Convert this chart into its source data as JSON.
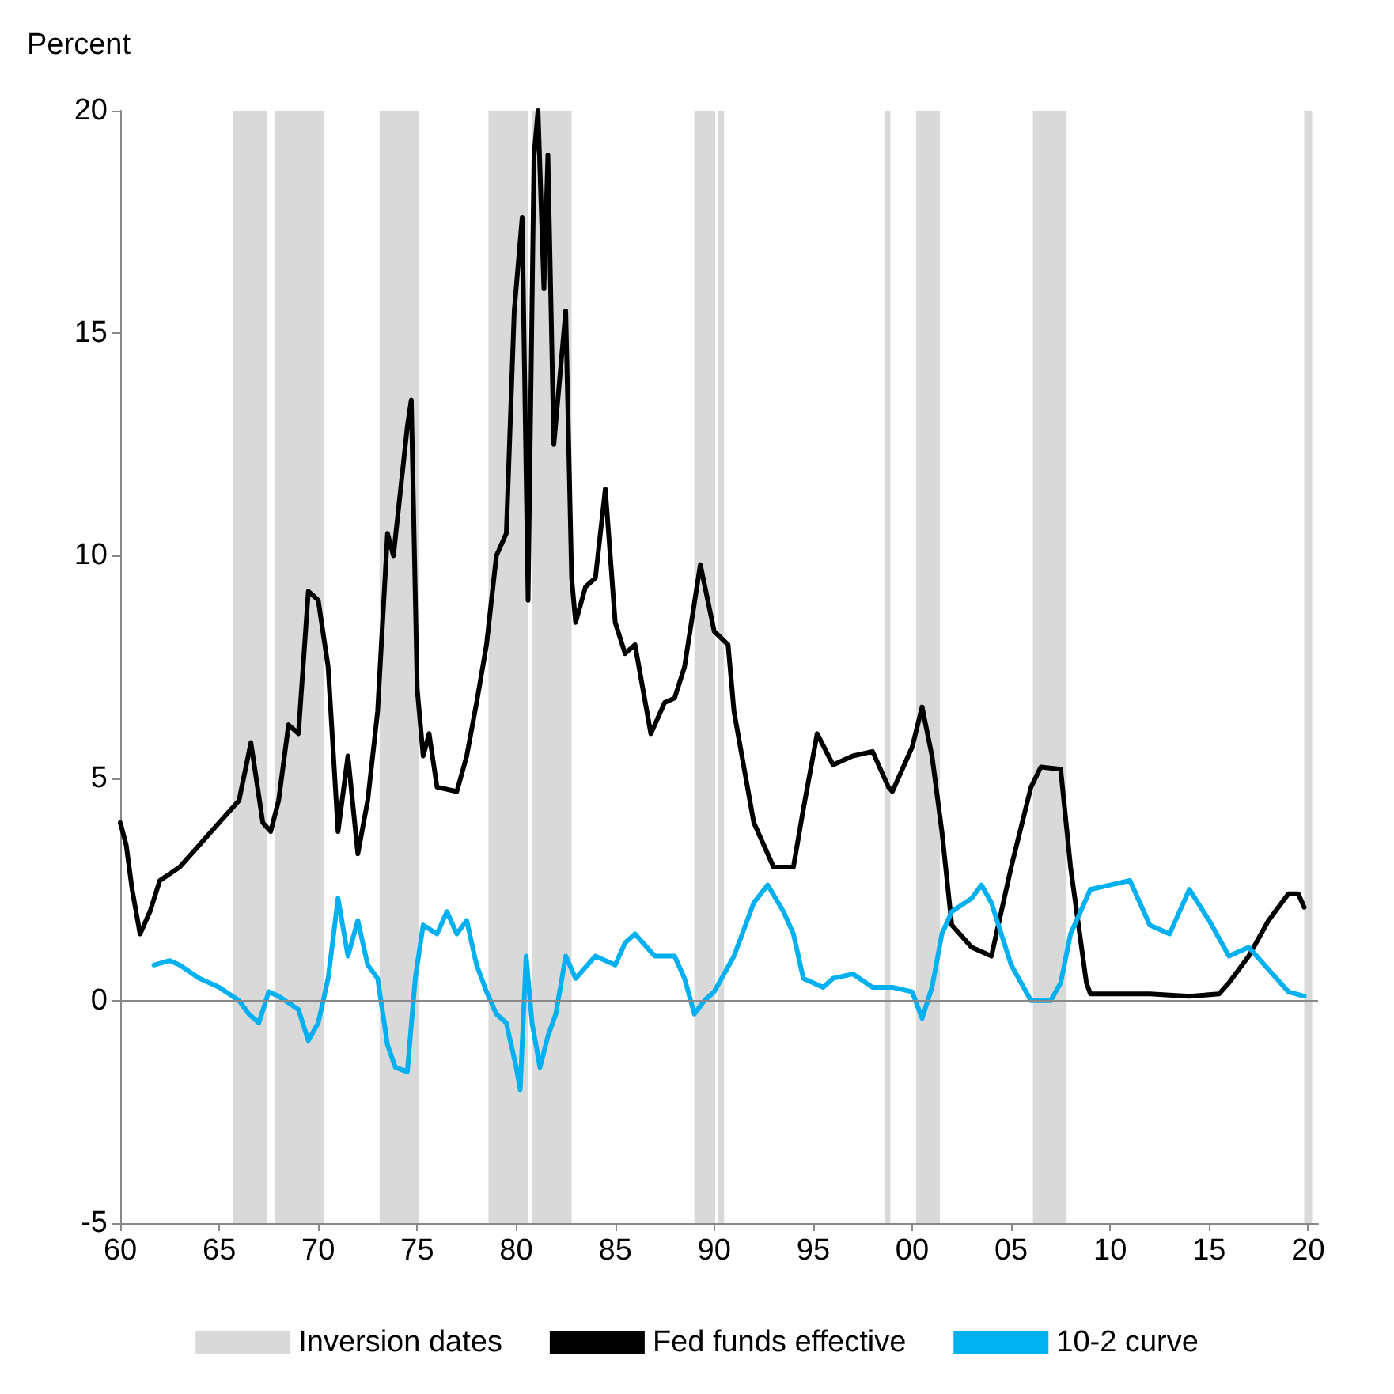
{
  "chart_data": {
    "type": "line",
    "ylabel": "Percent",
    "xlim": [
      1960,
      2020.5
    ],
    "ylim": [
      -5,
      20
    ],
    "yticks": [
      -5,
      0,
      5,
      10,
      15,
      20
    ],
    "xticks": [
      {
        "value": 1960,
        "label": "60"
      },
      {
        "value": 1965,
        "label": "65"
      },
      {
        "value": 1970,
        "label": "70"
      },
      {
        "value": 1975,
        "label": "75"
      },
      {
        "value": 1980,
        "label": "80"
      },
      {
        "value": 1985,
        "label": "85"
      },
      {
        "value": 1990,
        "label": "90"
      },
      {
        "value": 1995,
        "label": "95"
      },
      {
        "value": 2000,
        "label": "00"
      },
      {
        "value": 2005,
        "label": "05"
      },
      {
        "value": 2010,
        "label": "10"
      },
      {
        "value": 2015,
        "label": "15"
      },
      {
        "value": 2020,
        "label": "20"
      }
    ],
    "grid": false,
    "legend": "bottom",
    "ref_lines": [
      {
        "axis": "y",
        "value": 0,
        "color": "#888888"
      }
    ],
    "line_style": "solid",
    "marker": "none",
    "bands": [
      {
        "axis": "x",
        "from": 1965.7,
        "to": 1967.4,
        "label": "Inversion dates",
        "color": "#d9d9d9"
      },
      {
        "axis": "x",
        "from": 1967.8,
        "to": 1970.3,
        "color": "#d9d9d9"
      },
      {
        "axis": "x",
        "from": 1973.1,
        "to": 1975.1,
        "color": "#d9d9d9"
      },
      {
        "axis": "x",
        "from": 1978.6,
        "to": 1980.6,
        "color": "#d9d9d9"
      },
      {
        "axis": "x",
        "from": 1980.8,
        "to": 1982.8,
        "color": "#d9d9d9"
      },
      {
        "axis": "x",
        "from": 1989.0,
        "to": 1990.05,
        "color": "#d9d9d9"
      },
      {
        "axis": "x",
        "from": 1990.2,
        "to": 1990.5,
        "color": "#d9d9d9"
      },
      {
        "axis": "x",
        "from": 1998.6,
        "to": 1998.9,
        "color": "#d9d9d9"
      },
      {
        "axis": "x",
        "from": 2000.2,
        "to": 2001.4,
        "color": "#d9d9d9"
      },
      {
        "axis": "x",
        "from": 2006.1,
        "to": 2007.8,
        "color": "#d9d9d9"
      },
      {
        "axis": "x",
        "from": 2019.8,
        "to": 2020.2,
        "color": "#d9d9d9"
      }
    ],
    "series": [
      {
        "name": "Fed funds effective",
        "color": "#000000",
        "x": [
          1960,
          1960.3,
          1960.6,
          1961,
          1961.5,
          1962,
          1963,
          1964,
          1965,
          1966,
          1966.6,
          1967.2,
          1967.6,
          1968,
          1968.5,
          1969,
          1969.5,
          1970,
          1970.5,
          1971,
          1971.5,
          1972,
          1972.5,
          1973,
          1973.5,
          1973.8,
          1974.5,
          1974.7,
          1975,
          1975.3,
          1975.6,
          1976,
          1977,
          1977.5,
          1978,
          1978.5,
          1979,
          1979.5,
          1979.9,
          1980.3,
          1980.6,
          1980.9,
          1981.1,
          1981.4,
          1981.6,
          1981.9,
          1982.3,
          1982.5,
          1982.8,
          1983,
          1983.5,
          1984,
          1984.5,
          1985,
          1985.5,
          1986,
          1986.8,
          1987.5,
          1988,
          1988.5,
          1989.3,
          1990,
          1990.7,
          1991,
          1992,
          1993,
          1994,
          1994.5,
          1995.2,
          1996,
          1997,
          1998,
          1998.8,
          1999,
          2000,
          2000.5,
          2001,
          2001.5,
          2002,
          2003,
          2004,
          2005,
          2006,
          2006.5,
          2007.5,
          2008,
          2008.8,
          2009,
          2010,
          2012,
          2014,
          2015.5,
          2016,
          2017,
          2018,
          2019,
          2019.5,
          2019.8
        ],
        "values": [
          4.0,
          3.5,
          2.5,
          1.5,
          2.0,
          2.7,
          3.0,
          3.5,
          4.0,
          4.5,
          5.8,
          4.0,
          3.8,
          4.5,
          6.2,
          6.0,
          9.2,
          9.0,
          7.5,
          3.8,
          5.5,
          3.3,
          4.5,
          6.5,
          10.5,
          10.0,
          12.9,
          13.5,
          7.0,
          5.5,
          6.0,
          4.8,
          4.7,
          5.5,
          6.7,
          8.0,
          10.0,
          10.5,
          15.5,
          17.6,
          9.0,
          19.0,
          20.0,
          16.0,
          19.0,
          12.5,
          14.5,
          15.5,
          9.5,
          8.5,
          9.3,
          9.5,
          11.5,
          8.5,
          7.8,
          8.0,
          6.0,
          6.7,
          6.8,
          7.5,
          9.8,
          8.3,
          8.0,
          6.5,
          4.0,
          3.0,
          3.0,
          4.3,
          6.0,
          5.3,
          5.5,
          5.6,
          4.8,
          4.7,
          5.7,
          6.6,
          5.5,
          3.8,
          1.7,
          1.2,
          1.0,
          3.0,
          4.8,
          5.25,
          5.2,
          3.0,
          0.4,
          0.15,
          0.15,
          0.15,
          0.1,
          0.15,
          0.4,
          1.0,
          1.8,
          2.4,
          2.4,
          2.1
        ]
      },
      {
        "name": "10-2 curve",
        "color": "#00b0f0",
        "x": [
          1961.7,
          1962.5,
          1963,
          1964,
          1965,
          1966,
          1966.5,
          1967,
          1967.5,
          1968,
          1969,
          1969.5,
          1970,
          1970.5,
          1971,
          1971.5,
          1972,
          1972.5,
          1973,
          1973.5,
          1973.9,
          1974.5,
          1974.9,
          1975.3,
          1976,
          1976.5,
          1977,
          1977.5,
          1978,
          1978.5,
          1979,
          1979.5,
          1980,
          1980.2,
          1980.5,
          1980.8,
          1981.2,
          1981.6,
          1982,
          1982.5,
          1983,
          1984,
          1985,
          1985.5,
          1986,
          1987,
          1988,
          1988.5,
          1989,
          1989.5,
          1990,
          1991,
          1992,
          1992.7,
          1993.5,
          1994,
          1994.5,
          1995.5,
          1996,
          1997,
          1998,
          1999,
          2000,
          2000.5,
          2001,
          2001.5,
          2002,
          2003,
          2003.5,
          2004,
          2005,
          2006,
          2007,
          2007.5,
          2008,
          2009,
          2010,
          2011,
          2012,
          2013,
          2014,
          2015,
          2016,
          2017,
          2018,
          2019,
          2019.8
        ],
        "values": [
          0.8,
          0.9,
          0.8,
          0.5,
          0.3,
          0.0,
          -0.3,
          -0.5,
          0.2,
          0.1,
          -0.2,
          -0.9,
          -0.5,
          0.5,
          2.3,
          1.0,
          1.8,
          0.8,
          0.5,
          -1.0,
          -1.5,
          -1.6,
          0.5,
          1.7,
          1.5,
          2.0,
          1.5,
          1.8,
          0.8,
          0.2,
          -0.3,
          -0.5,
          -1.5,
          -2.0,
          1.0,
          -0.5,
          -1.5,
          -0.8,
          -0.3,
          1.0,
          0.5,
          1.0,
          0.8,
          1.3,
          1.5,
          1.0,
          1.0,
          0.5,
          -0.3,
          0.0,
          0.2,
          1.0,
          2.2,
          2.6,
          2.0,
          1.5,
          0.5,
          0.3,
          0.5,
          0.6,
          0.3,
          0.3,
          0.2,
          -0.4,
          0.3,
          1.5,
          2.0,
          2.3,
          2.6,
          2.2,
          0.8,
          0.0,
          0.0,
          0.4,
          1.5,
          2.5,
          2.6,
          2.7,
          1.7,
          1.5,
          2.5,
          1.8,
          1.0,
          1.2,
          0.7,
          0.2,
          0.1
        ]
      }
    ]
  }
}
